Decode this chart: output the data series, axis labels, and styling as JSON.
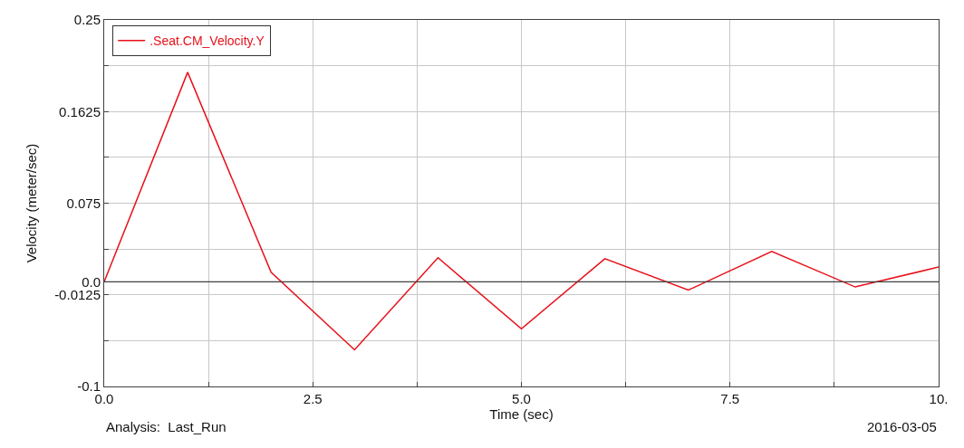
{
  "chart_data": {
    "type": "line",
    "xlabel": "Time (sec)",
    "ylabel": "Velocity (meter/sec)",
    "x": [
      0,
      1,
      2,
      3,
      4,
      5,
      6,
      7,
      8,
      9,
      10
    ],
    "series": [
      {
        "name": ".Seat.CM_Velocity.Y",
        "color": "#e8101a",
        "values": [
          0,
          0.2,
          0.009,
          -0.065,
          0.023,
          -0.045,
          0.022,
          -0.008,
          0.029,
          -0.005,
          0.014
        ]
      }
    ],
    "xlim": [
      0,
      10
    ],
    "ylim": [
      -0.1,
      0.25
    ],
    "xticks": [
      {
        "value": 0,
        "label": "0.0"
      },
      {
        "value": 1.25,
        "label": null
      },
      2.5,
      {
        "value": 3.75,
        "label": null
      },
      {
        "value": 5,
        "label": "5.0"
      },
      {
        "value": 6.25,
        "label": null
      },
      7.5,
      {
        "value": 8.75,
        "label": null
      },
      {
        "value": 10,
        "label": "10."
      }
    ],
    "yticks": [
      -0.1,
      {
        "value": -0.05625,
        "label": null
      },
      -0.0125,
      {
        "value": 0,
        "label": "0.0"
      },
      {
        "value": 0.03125,
        "label": null
      },
      0.075,
      {
        "value": 0.11875,
        "label": null
      },
      0.1625,
      {
        "value": 0.20625,
        "label": null
      },
      0.25
    ],
    "ref_lines": [
      {
        "axis": "y",
        "value": 0,
        "color": "#404040"
      }
    ],
    "annotations": [
      "Analysis:  Last_Run",
      "2016-03-05"
    ],
    "grid": true,
    "legend": "top left",
    "marker": "none",
    "line_style": "solid"
  }
}
